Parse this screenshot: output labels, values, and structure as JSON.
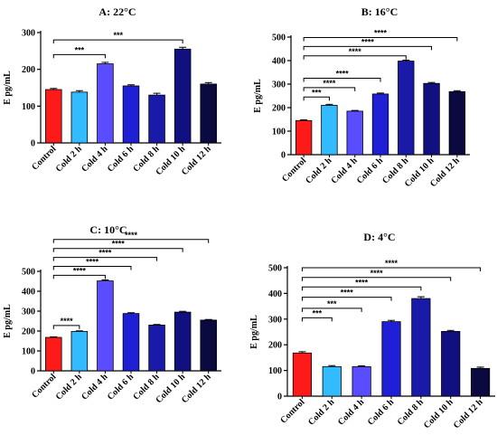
{
  "chart_data": [
    {
      "type": "bar",
      "title": "A: 22°C",
      "ylabel": "E pg/mL",
      "xlabel": "",
      "ylim": [
        0,
        300
      ],
      "yticks": [
        0,
        100,
        200,
        300
      ],
      "categories": [
        "Control",
        "Cold 2 h",
        "Cold 4 h",
        "Cold 6 h",
        "Cold 8 h",
        "Cold 10 h",
        "Cold 12 h"
      ],
      "values": [
        145,
        138,
        215,
        155,
        130,
        255,
        160
      ],
      "errors": [
        3,
        4,
        4,
        3,
        5,
        5,
        4
      ],
      "colors": [
        "#ff1a1a",
        "#33bbff",
        "#5a4dff",
        "#1f1fd6",
        "#1a1aa8",
        "#101080",
        "#0a0a40"
      ],
      "significance": [
        {
          "from": 0,
          "to": 2,
          "label": "***",
          "y": 240
        },
        {
          "from": 0,
          "to": 5,
          "label": "***",
          "y": 280
        }
      ]
    },
    {
      "type": "bar",
      "title": "B: 16°C",
      "ylabel": "E pg/mL",
      "xlabel": "",
      "ylim": [
        0,
        500
      ],
      "yticks": [
        0,
        100,
        200,
        300,
        400,
        500
      ],
      "categories": [
        "Control",
        "Cold 2 h",
        "Cold 4 h",
        "Cold 6 h",
        "Cold 8 h",
        "Cold 10 h",
        "Cold 12 h"
      ],
      "values": [
        145,
        210,
        185,
        258,
        398,
        303,
        268
      ],
      "errors": [
        3,
        4,
        3,
        4,
        4,
        4,
        4
      ],
      "colors": [
        "#ff1a1a",
        "#33bbff",
        "#5a4dff",
        "#1f1fd6",
        "#1a1aa8",
        "#101080",
        "#0a0a40"
      ],
      "significance": [
        {
          "from": 0,
          "to": 1,
          "label": "***",
          "y": 245
        },
        {
          "from": 0,
          "to": 2,
          "label": "****",
          "y": 285
        },
        {
          "from": 0,
          "to": 3,
          "label": "****",
          "y": 325
        },
        {
          "from": 0,
          "to": 4,
          "label": "****",
          "y": 420
        },
        {
          "from": 0,
          "to": 5,
          "label": "****",
          "y": 460
        },
        {
          "from": 0,
          "to": 6,
          "label": "****",
          "y": 498
        }
      ]
    },
    {
      "type": "bar",
      "title": "C: 10°C",
      "ylabel": "E pg/mL",
      "xlabel": "",
      "ylim": [
        0,
        500
      ],
      "yticks": [
        0,
        100,
        200,
        300,
        400,
        500
      ],
      "categories": [
        "Control",
        "Cold 2 h",
        "Cold 4 h",
        "Cold 6 h",
        "Cold 8 h",
        "Cold 10 h",
        "Cold 12 h"
      ],
      "values": [
        168,
        198,
        452,
        288,
        230,
        295,
        255
      ],
      "errors": [
        3,
        3,
        5,
        4,
        3,
        4,
        3
      ],
      "colors": [
        "#ff1a1a",
        "#33bbff",
        "#5a4dff",
        "#1f1fd6",
        "#1a1aa8",
        "#101080",
        "#0a0a40"
      ],
      "significance": [
        {
          "from": 0,
          "to": 1,
          "label": "****",
          "y": 228
        },
        {
          "from": 0,
          "to": 2,
          "label": "****",
          "y": 480
        },
        {
          "from": 0,
          "to": 3,
          "label": "****",
          "y": 525
        },
        {
          "from": 0,
          "to": 4,
          "label": "****",
          "y": 570
        },
        {
          "from": 0,
          "to": 5,
          "label": "****",
          "y": 615
        },
        {
          "from": 0,
          "to": 6,
          "label": "****",
          "y": 660
        }
      ]
    },
    {
      "type": "bar",
      "title": "D: 4°C",
      "ylabel": "E pg/mL",
      "xlabel": "",
      "ylim": [
        0,
        500
      ],
      "yticks": [
        0,
        100,
        200,
        300,
        400,
        500
      ],
      "categories": [
        "Control",
        "Cold 2 h",
        "Cold 4 h",
        "Cold 6 h",
        "Cold 8 h",
        "Cold 10 h",
        "Cold 12 h"
      ],
      "values": [
        168,
        115,
        115,
        290,
        380,
        252,
        108
      ],
      "errors": [
        5,
        4,
        3,
        5,
        7,
        4,
        5
      ],
      "colors": [
        "#ff1a1a",
        "#33bbff",
        "#5a4dff",
        "#1f1fd6",
        "#1a1aa8",
        "#101080",
        "#0a0a40"
      ],
      "significance": [
        {
          "from": 0,
          "to": 1,
          "label": "***",
          "y": 305
        },
        {
          "from": 0,
          "to": 2,
          "label": "***",
          "y": 342
        },
        {
          "from": 0,
          "to": 3,
          "label": "****",
          "y": 385
        },
        {
          "from": 0,
          "to": 4,
          "label": "****",
          "y": 425
        },
        {
          "from": 0,
          "to": 5,
          "label": "****",
          "y": 462
        },
        {
          "from": 0,
          "to": 6,
          "label": "****",
          "y": 500
        }
      ]
    }
  ]
}
